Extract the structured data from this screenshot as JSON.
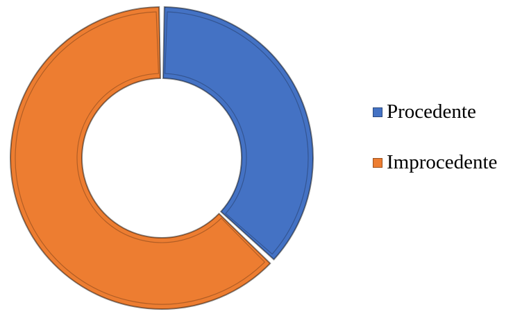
{
  "chart_data": {
    "type": "pie",
    "variant": "donut",
    "title": "",
    "categories": [
      "Procedente",
      "Improcedente"
    ],
    "values": [
      37,
      63
    ],
    "colors": [
      "#4472c4",
      "#ed7d31"
    ],
    "legend_position": "right"
  },
  "legend": {
    "items": [
      {
        "label": "Procedente",
        "color": "#4472c4"
      },
      {
        "label": "Improcedente",
        "color": "#ed7d31"
      }
    ]
  }
}
